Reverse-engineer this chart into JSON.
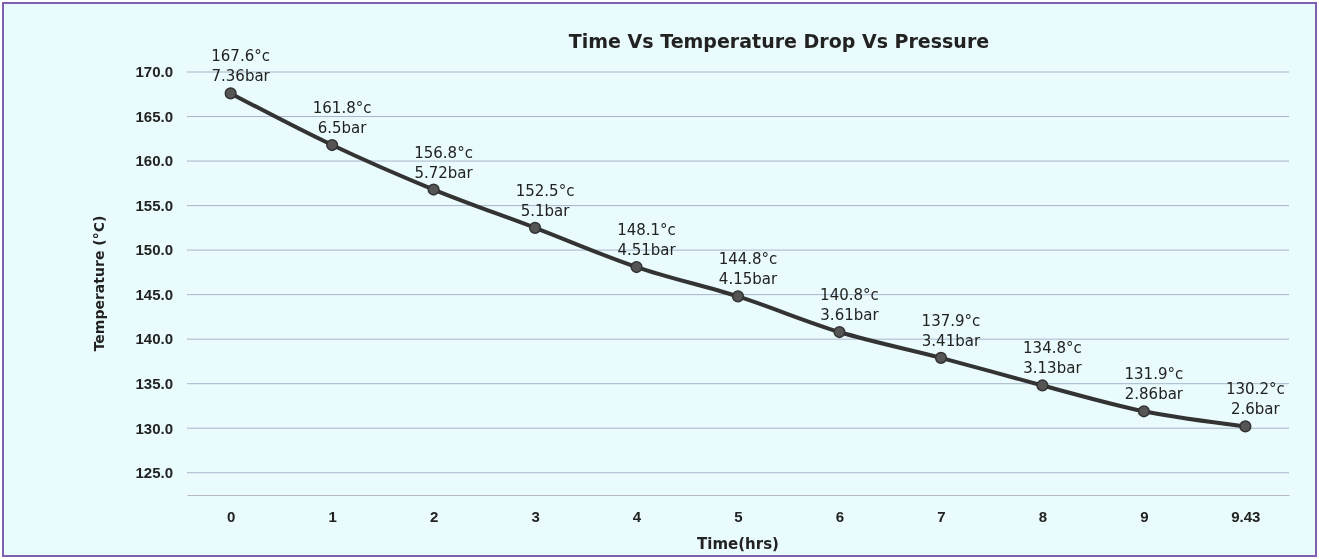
{
  "chart_data": {
    "type": "line",
    "title": "Time Vs Temperature Drop Vs Pressure",
    "xlabel": "Time(hrs)",
    "ylabel": "Temperature (°C)",
    "categories": [
      "0",
      "1",
      "2",
      "3",
      "4",
      "5",
      "6",
      "7",
      "8",
      "9",
      "9.43"
    ],
    "series": [
      {
        "color": "#333333",
        "values": [
          167.6,
          161.8,
          156.8,
          152.5,
          148.1,
          144.8,
          140.8,
          137.9,
          134.8,
          131.9,
          130.2
        ],
        "value_labels": [
          "167.6°c\n7.36bar",
          "161.8°c\n6.5bar",
          "156.8°c\n5.72bar",
          "152.5°c\n5.1bar",
          "148.1°c\n4.51bar",
          "144.8°c\n4.15bar",
          "140.8°c\n3.61bar",
          "137.9°c\n3.41bar",
          "134.8°c\n3.13bar",
          "131.9°c\n2.86bar",
          "130.2°c\n2.6bar"
        ]
      }
    ],
    "ylim": [
      122.5,
      170
    ],
    "yticks": [
      {
        "value": 125,
        "label": "125.0"
      },
      {
        "value": 130,
        "label": "130.0"
      },
      {
        "value": 135,
        "label": "135.0"
      },
      {
        "value": 140,
        "label": "140.0"
      },
      {
        "value": 145,
        "label": "145.0"
      },
      {
        "value": 150,
        "label": "150.0"
      },
      {
        "value": 155,
        "label": "155.0"
      },
      {
        "value": 160,
        "label": "160.0"
      },
      {
        "value": 165,
        "label": "165.0"
      },
      {
        "value": 170,
        "label": "170.0"
      }
    ],
    "grid": "y",
    "marker": "circle",
    "line_style": "solid"
  }
}
